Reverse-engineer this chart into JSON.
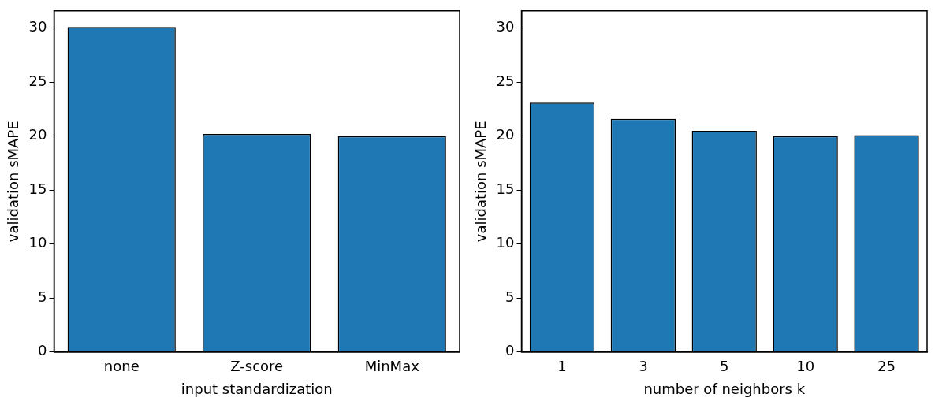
{
  "chart_data": [
    {
      "type": "bar",
      "xlabel": "input standardization",
      "ylabel": "validation sMAPE",
      "categories": [
        "none",
        "Z-score",
        "MinMax"
      ],
      "values": [
        30.1,
        20.2,
        20.0
      ],
      "color": "#1f77b4",
      "ylim": [
        0,
        31.6
      ],
      "yticks": [
        0,
        5,
        10,
        15,
        20,
        25,
        30
      ],
      "grid": false,
      "legend": false
    },
    {
      "type": "bar",
      "xlabel": "number of neighbors k",
      "ylabel": "validation sMAPE",
      "categories": [
        "1",
        "3",
        "5",
        "10",
        "25"
      ],
      "values": [
        23.1,
        21.6,
        20.5,
        20.0,
        20.1
      ],
      "color": "#1f77b4",
      "ylim": [
        0,
        31.6
      ],
      "yticks": [
        0,
        5,
        10,
        15,
        20,
        25,
        30
      ],
      "grid": false,
      "legend": false
    }
  ]
}
